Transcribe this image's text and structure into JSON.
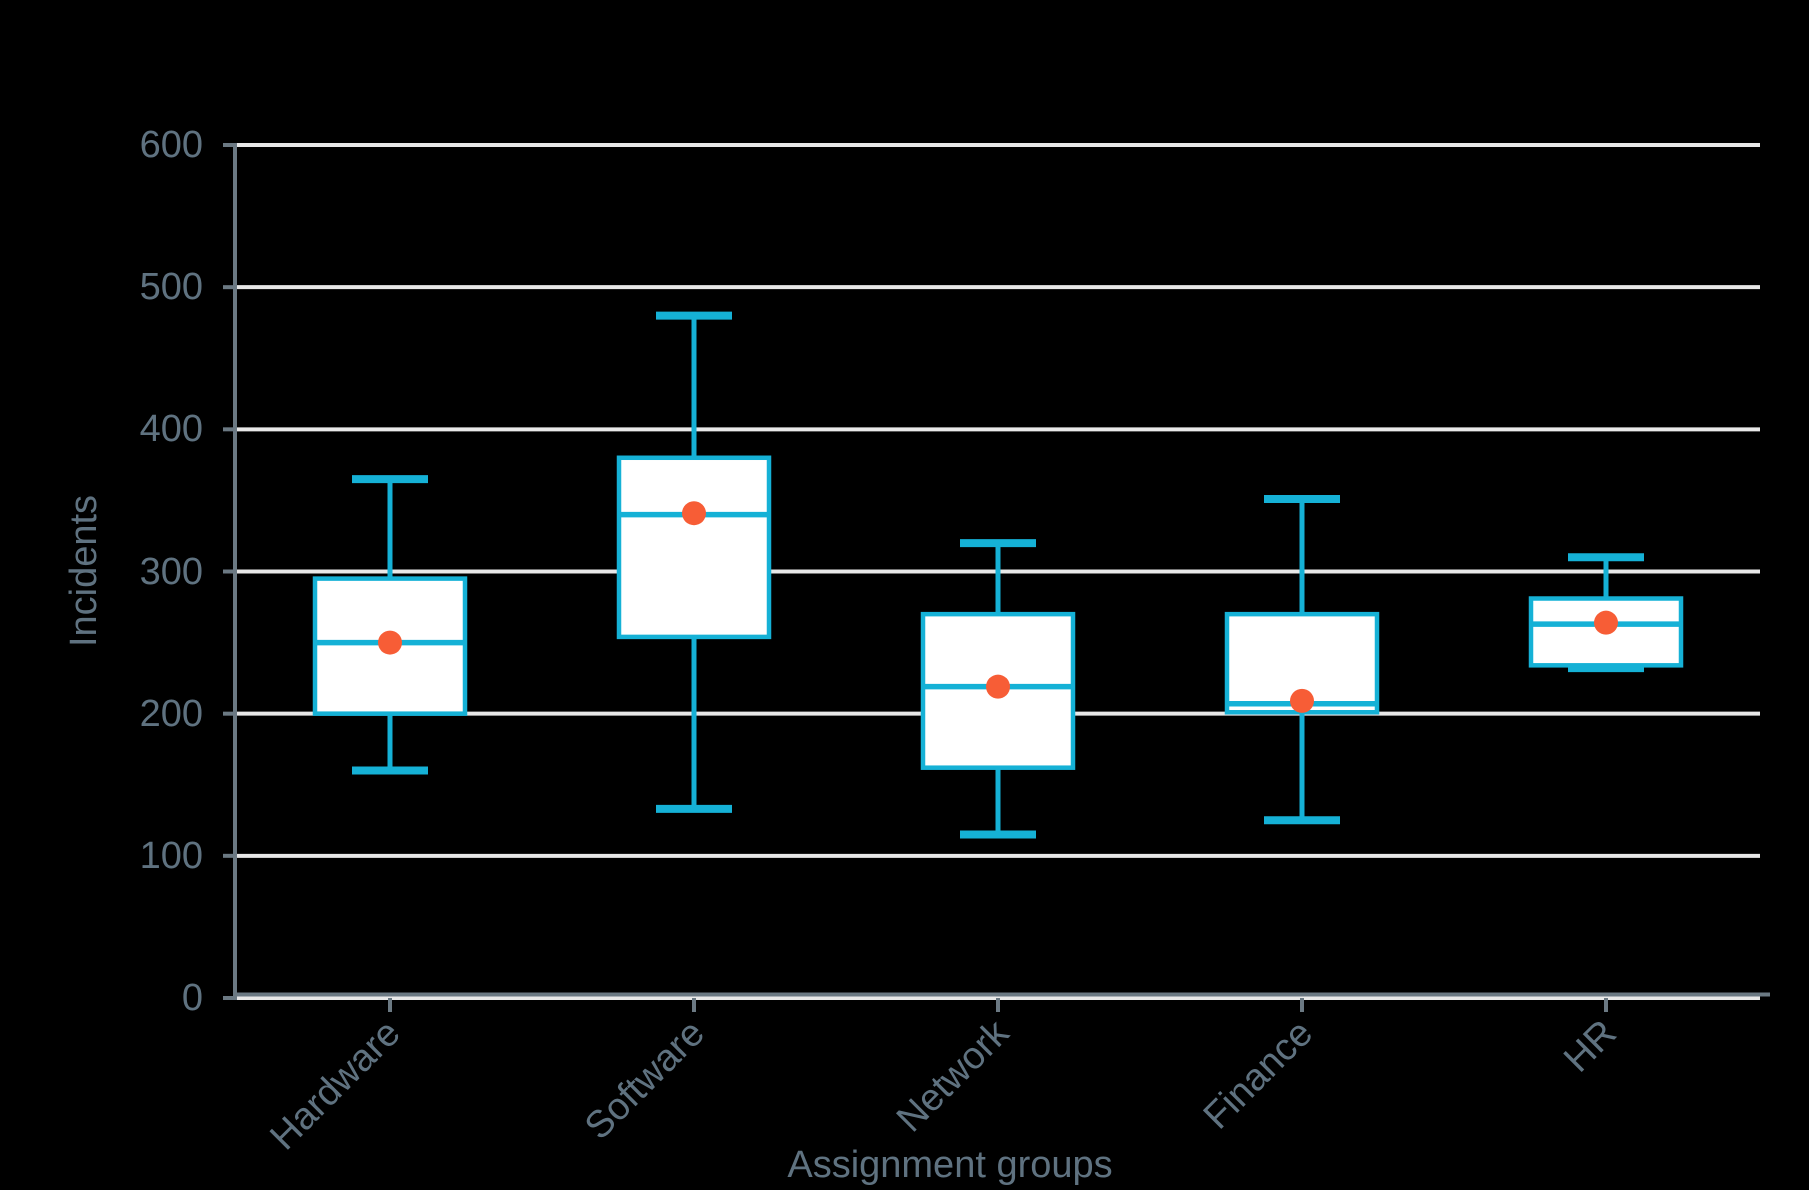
{
  "chart_data": {
    "type": "boxplot",
    "title": "",
    "xlabel": "Assignment groups",
    "ylabel": "Incidents",
    "ylim": [
      0,
      600
    ],
    "yticks": [
      0,
      100,
      200,
      300,
      400,
      500,
      600
    ],
    "grid": "horizontal-white-gridlines",
    "legend": "none",
    "categories": [
      "Hardware",
      "Software",
      "Network",
      "Finance",
      "HR"
    ],
    "series": [
      {
        "name": "Hardware",
        "min": 160,
        "q1": 200,
        "median": 250,
        "q3": 295,
        "max": 365,
        "mean": 250
      },
      {
        "name": "Software",
        "min": 133,
        "q1": 254,
        "median": 340,
        "q3": 380,
        "max": 480,
        "mean": 341
      },
      {
        "name": "Network",
        "min": 115,
        "q1": 162,
        "median": 219,
        "q3": 270,
        "max": 320,
        "mean": 219
      },
      {
        "name": "Finance",
        "min": 125,
        "q1": 201,
        "median": 207,
        "q3": 270,
        "max": 351,
        "mean": 209
      },
      {
        "name": "HR",
        "min": 232,
        "q1": 234,
        "median": 263,
        "q3": 281,
        "max": 310,
        "mean": 264
      }
    ]
  },
  "colors": {
    "background": "#000000",
    "box_stroke": "#15b1d6",
    "box_fill": "#ffffff",
    "mean_dot": "#f75d36",
    "gridline": "#e8e8e8",
    "axis": "#6b7983",
    "label_text": "#5f7280"
  }
}
